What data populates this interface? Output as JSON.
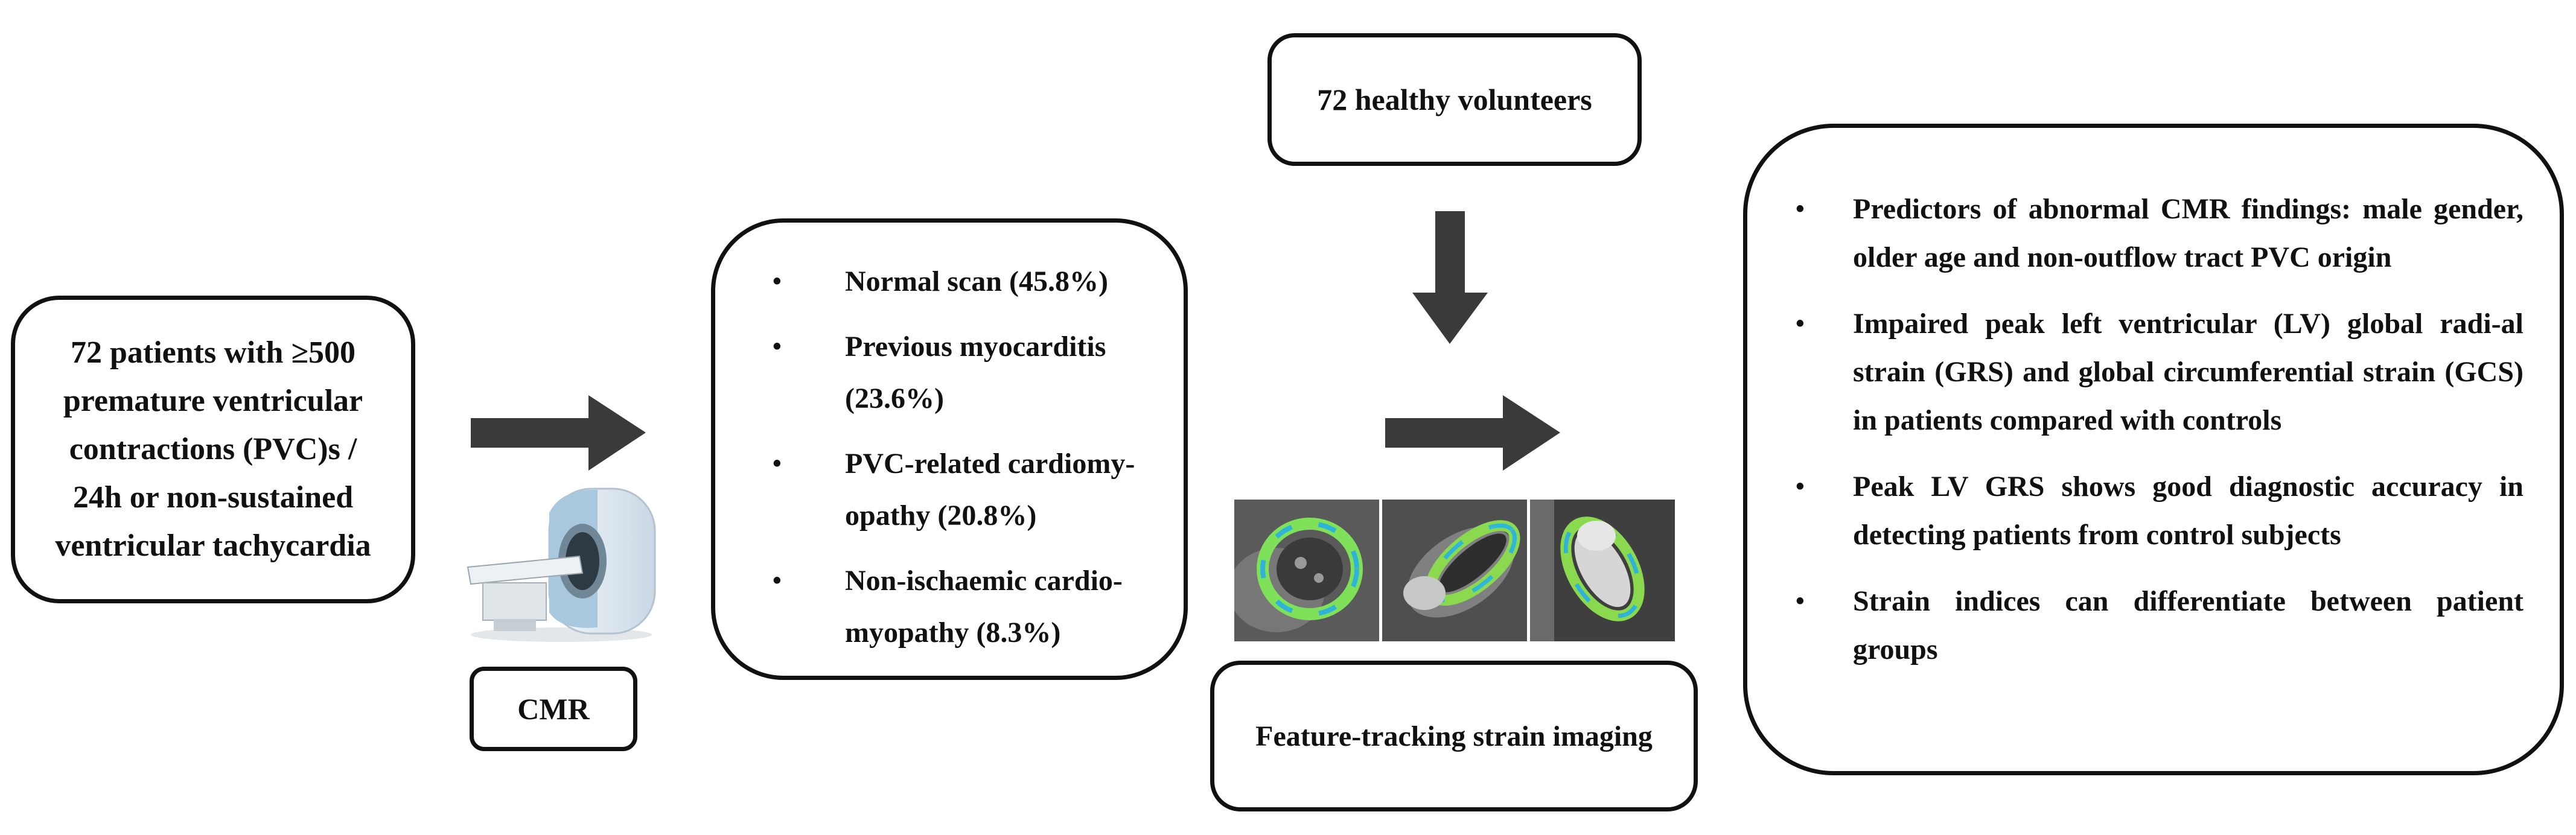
{
  "patients_box": {
    "lines": [
      "72  patients with ≥500",
      "premature ventricular",
      "contractions (PVC)s /",
      "24h or non-sustained",
      "ventricular tachycardia"
    ]
  },
  "cmr_label": "CMR",
  "cmr_findings": [
    "Normal scan (45.8%)",
    "Previous myocarditis (23.6%)",
    "PVC-related cardiomy-opathy (20.8%)",
    "Non-ischaemic cardio-myopathy (8.3%)"
  ],
  "healthy_volunteers": "72  healthy volunteers",
  "feature_tracking_label": "Feature-tracking strain imaging",
  "summary_points": [
    "Predictors of abnormal CMR findings: male gender, older age and non-outflow tract PVC origin",
    "Impaired peak left ventricular (LV) global radi-al strain (GRS) and global circumferential strain (GCS) in patients compared with controls",
    "Peak LV GRS shows good diagnostic accuracy in detecting patients from control subjects",
    "Strain indices can differentiate between patient groups"
  ],
  "colors": {
    "stroke": "#111111",
    "arrow": "#3a3a3a"
  }
}
